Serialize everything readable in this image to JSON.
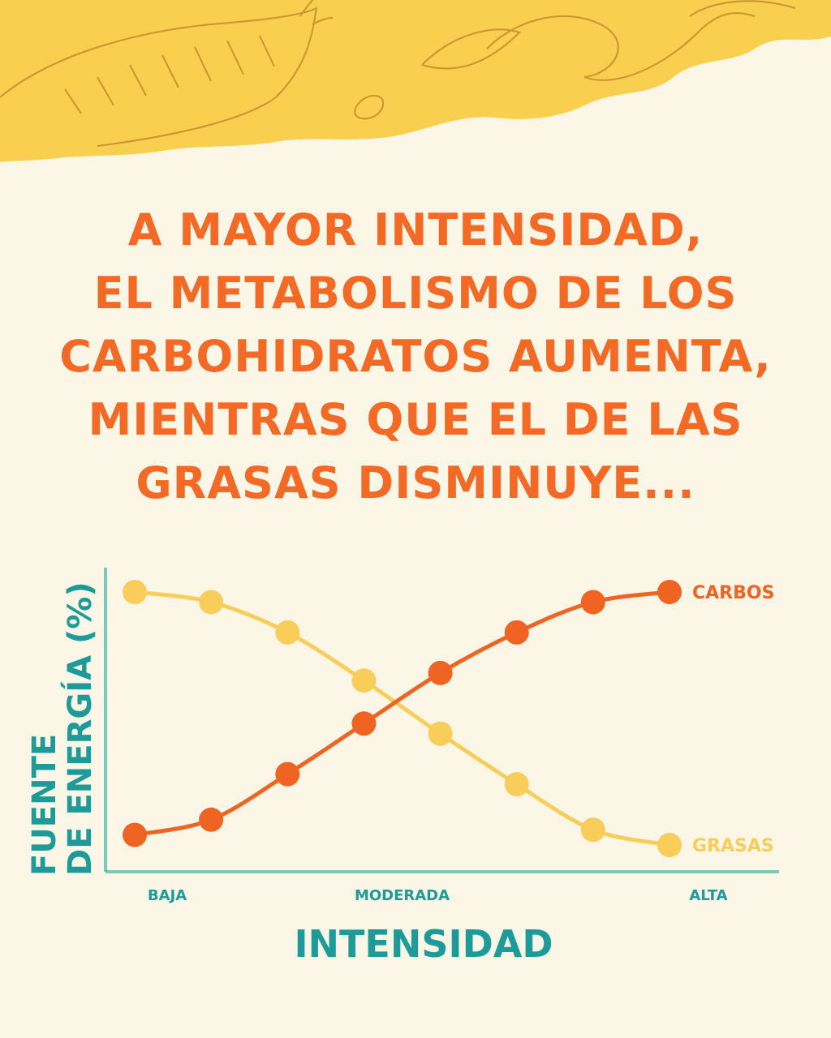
{
  "headline": {
    "lines": [
      "A MAYOR INTENSIDAD,",
      "EL METABOLISMO DE LOS",
      "CARBOHIDRATOS AUMENTA,",
      "MIENTRAS QUE EL DE LAS",
      "GRASAS DISMINUYE..."
    ]
  },
  "colors": {
    "background": "#fbf6e6",
    "banner": "#f8cf4f",
    "banner_engraving": "#c9962e",
    "title": "#f26a25",
    "carbos": "#f06423",
    "grasas": "#f8cd5a",
    "axis": "#1e9b98"
  },
  "chart_data": {
    "type": "line",
    "x": [
      0,
      1,
      2,
      3,
      4,
      5,
      6,
      7
    ],
    "tick_labels": [
      {
        "x": 0,
        "label": "BAJA"
      },
      {
        "x": 3.5,
        "label": "MODERADA"
      },
      {
        "x": 7,
        "label": "ALTA"
      }
    ],
    "series": [
      {
        "name": "CARBOS",
        "values": [
          4,
          10,
          28,
          48,
          68,
          84,
          96,
          100
        ]
      },
      {
        "name": "GRASAS",
        "values": [
          100,
          96,
          84,
          65,
          44,
          24,
          6,
          0
        ]
      }
    ],
    "xlabel": "INTENSIDAD",
    "ylabel_lines": [
      "FUENTE",
      "DE ENERGÍA (%)"
    ],
    "ylim": [
      0,
      100
    ],
    "grid": false,
    "legend": "direct labels at right end of lines"
  }
}
